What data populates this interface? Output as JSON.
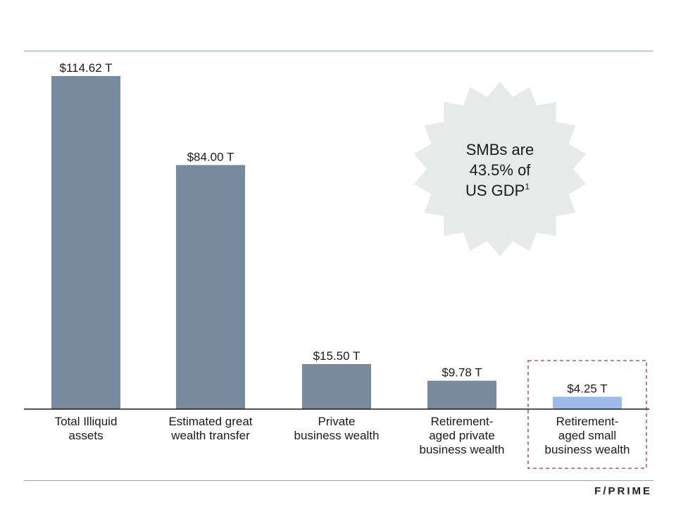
{
  "chart_data": {
    "type": "bar",
    "categories": [
      [
        "Total Illiquid",
        "assets"
      ],
      [
        "Estimated great",
        "wealth transfer"
      ],
      [
        "Private",
        "business wealth"
      ],
      [
        "Retirement-",
        "aged private",
        "business wealth"
      ],
      [
        "Retirement-",
        "aged small",
        "business wealth"
      ]
    ],
    "values": [
      114.62,
      84.0,
      15.5,
      9.78,
      4.25
    ],
    "value_labels": [
      "$114.62 T",
      "$84.00 T",
      "$15.50 T",
      "$9.78 T",
      "$4.25 T"
    ],
    "highlight_index": 4,
    "ylim": [
      0,
      114.62
    ],
    "grid": false,
    "colors": {
      "bar": "#778a9e",
      "highlight_bar": "#9dbbe8",
      "highlight_border": "#a33a2e",
      "callout_fill": "#e6ebe9"
    }
  },
  "callout": {
    "lines": [
      "SMBs are",
      "43.5% of",
      "US GDP"
    ],
    "footnote_mark": "1"
  },
  "brand": {
    "logo_text": "F/PRIME"
  }
}
